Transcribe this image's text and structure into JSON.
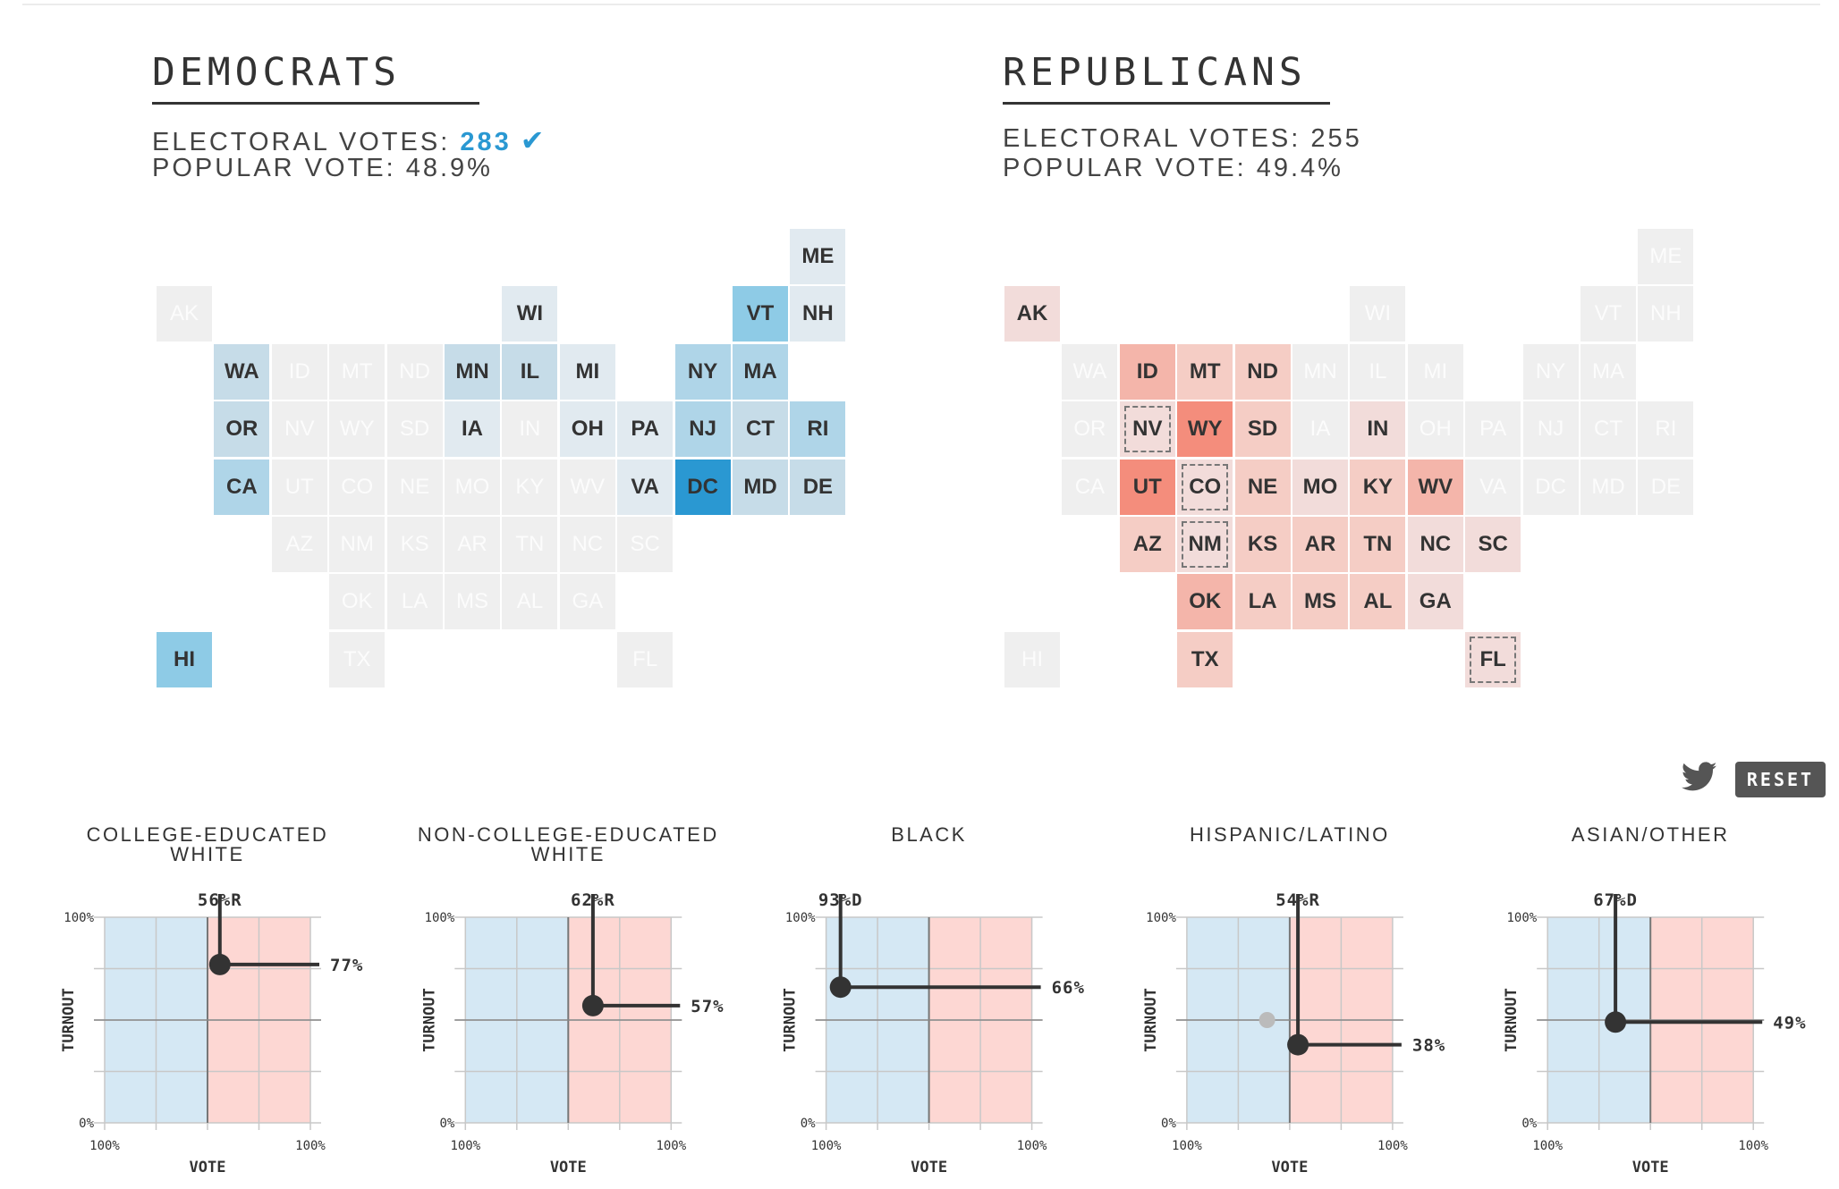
{
  "parties": [
    {
      "id": "dem",
      "title": "DEMOCRATS",
      "ev_label": "ELECTORAL VOTES:",
      "ev_value": "283",
      "winner": true,
      "winner_mark": "✔",
      "pv_label": "POPULAR VOTE:",
      "pv_value": "48.9%"
    },
    {
      "id": "rep",
      "title": "REPUBLICANS",
      "ev_label": "ELECTORAL VOTES:",
      "ev_value": "255",
      "winner": false,
      "pv_label": "POPULAR VOTE:",
      "pv_value": "49.4%"
    }
  ],
  "colors": {
    "empty_tile": "#efefef",
    "empty_text": "#fcfcfc",
    "dem": {
      "1": "#e1eaf0",
      "2": "#c6dce8",
      "3": "#afd5e8",
      "4": "#8ecbe6",
      "5": "#2a98d2"
    },
    "rep": {
      "1": "#f2dcda",
      "2": "#f5cdc5",
      "3": "#f4b5aa",
      "4": "#f48d7c"
    },
    "chart_blue": "#d5e8f4",
    "chart_red": "#fdd7d3",
    "dark": "#333333"
  },
  "states": [
    {
      "abbr": "ME",
      "d": 1,
      "r": 0
    },
    {
      "abbr": "AK",
      "d": 0,
      "r": 1
    },
    {
      "abbr": "WI",
      "d": 1,
      "r": 0
    },
    {
      "abbr": "VT",
      "d": 4,
      "r": 0
    },
    {
      "abbr": "NH",
      "d": 1,
      "r": 0
    },
    {
      "abbr": "WA",
      "d": 2,
      "r": 0
    },
    {
      "abbr": "ID",
      "d": 0,
      "r": 3
    },
    {
      "abbr": "MT",
      "d": 0,
      "r": 2
    },
    {
      "abbr": "ND",
      "d": 0,
      "r": 2
    },
    {
      "abbr": "MN",
      "d": 2,
      "r": 0
    },
    {
      "abbr": "IL",
      "d": 2,
      "r": 0
    },
    {
      "abbr": "MI",
      "d": 1,
      "r": 0
    },
    {
      "abbr": "NY",
      "d": 3,
      "r": 0
    },
    {
      "abbr": "MA",
      "d": 3,
      "r": 0
    },
    {
      "abbr": "OR",
      "d": 2,
      "r": 0
    },
    {
      "abbr": "NV",
      "d": 0,
      "r": 1,
      "tossup": true
    },
    {
      "abbr": "WY",
      "d": 0,
      "r": 4
    },
    {
      "abbr": "SD",
      "d": 0,
      "r": 2
    },
    {
      "abbr": "IA",
      "d": 1,
      "r": 0
    },
    {
      "abbr": "IN",
      "d": 0,
      "r": 1
    },
    {
      "abbr": "OH",
      "d": 1,
      "r": 0
    },
    {
      "abbr": "PA",
      "d": 1,
      "r": 0
    },
    {
      "abbr": "NJ",
      "d": 3,
      "r": 0
    },
    {
      "abbr": "CT",
      "d": 2,
      "r": 0
    },
    {
      "abbr": "RI",
      "d": 3,
      "r": 0
    },
    {
      "abbr": "CA",
      "d": 3,
      "r": 0
    },
    {
      "abbr": "UT",
      "d": 0,
      "r": 4
    },
    {
      "abbr": "CO",
      "d": 0,
      "r": 1,
      "tossup": true
    },
    {
      "abbr": "NE",
      "d": 0,
      "r": 2
    },
    {
      "abbr": "MO",
      "d": 0,
      "r": 1
    },
    {
      "abbr": "KY",
      "d": 0,
      "r": 2
    },
    {
      "abbr": "WV",
      "d": 0,
      "r": 3
    },
    {
      "abbr": "VA",
      "d": 1,
      "r": 0
    },
    {
      "abbr": "DC",
      "d": 5,
      "r": 0
    },
    {
      "abbr": "MD",
      "d": 2,
      "r": 0
    },
    {
      "abbr": "DE",
      "d": 2,
      "r": 0
    },
    {
      "abbr": "AZ",
      "d": 0,
      "r": 2
    },
    {
      "abbr": "NM",
      "d": 0,
      "r": 1,
      "tossup": true
    },
    {
      "abbr": "KS",
      "d": 0,
      "r": 2
    },
    {
      "abbr": "AR",
      "d": 0,
      "r": 2
    },
    {
      "abbr": "TN",
      "d": 0,
      "r": 2
    },
    {
      "abbr": "NC",
      "d": 0,
      "r": 1
    },
    {
      "abbr": "SC",
      "d": 0,
      "r": 1
    },
    {
      "abbr": "OK",
      "d": 0,
      "r": 3
    },
    {
      "abbr": "LA",
      "d": 0,
      "r": 2
    },
    {
      "abbr": "MS",
      "d": 0,
      "r": 2
    },
    {
      "abbr": "AL",
      "d": 0,
      "r": 2
    },
    {
      "abbr": "GA",
      "d": 0,
      "r": 1
    },
    {
      "abbr": "HI",
      "d": 4,
      "r": 0
    },
    {
      "abbr": "TX",
      "d": 0,
      "r": 2
    },
    {
      "abbr": "FL",
      "d": 0,
      "r": 1,
      "tossup": true
    }
  ],
  "toolbar": {
    "reset_label": "RESET",
    "share_icon": "twitter-icon"
  },
  "demographics_common": {
    "y_axis_label": "TURNOUT",
    "x_axis_label": "VOTE",
    "y_top": "100%",
    "y_bottom": "0%",
    "x_left": "100%",
    "x_right": "100%"
  },
  "chart_data": [
    {
      "type": "scatter",
      "title_lines": [
        "COLLEGE-EDUCATED",
        "WHITE"
      ],
      "vote_label": "56%R",
      "turnout_label": "77%",
      "party": "R",
      "vote_share": 56,
      "turnout": 77,
      "xlabel": "VOTE",
      "ylabel": "TURNOUT",
      "ylim": [
        0,
        100
      ]
    },
    {
      "type": "scatter",
      "title_lines": [
        "NON-COLLEGE-EDUCATED",
        "WHITE"
      ],
      "vote_label": "62%R",
      "turnout_label": "57%",
      "party": "R",
      "vote_share": 62,
      "turnout": 57,
      "xlabel": "VOTE",
      "ylabel": "TURNOUT",
      "ylim": [
        0,
        100
      ]
    },
    {
      "type": "scatter",
      "title_lines": [
        "BLACK"
      ],
      "vote_label": "93%D",
      "turnout_label": "66%",
      "party": "D",
      "vote_share": 93,
      "turnout": 66,
      "xlabel": "VOTE",
      "ylabel": "TURNOUT",
      "ylim": [
        0,
        100
      ]
    },
    {
      "type": "scatter",
      "title_lines": [
        "HISPANIC/LATINO"
      ],
      "vote_label": "54%R",
      "turnout_label": "38%",
      "party": "R",
      "vote_share": 54,
      "turnout": 38,
      "ghost": {
        "party": "D",
        "vote_share": 61,
        "turnout": 50
      },
      "xlabel": "VOTE",
      "ylabel": "TURNOUT",
      "ylim": [
        0,
        100
      ]
    },
    {
      "type": "scatter",
      "title_lines": [
        "ASIAN/OTHER"
      ],
      "vote_label": "67%D",
      "turnout_label": "49%",
      "party": "D",
      "vote_share": 67,
      "turnout": 49,
      "xlabel": "VOTE",
      "ylabel": "TURNOUT",
      "ylim": [
        0,
        100
      ]
    }
  ]
}
